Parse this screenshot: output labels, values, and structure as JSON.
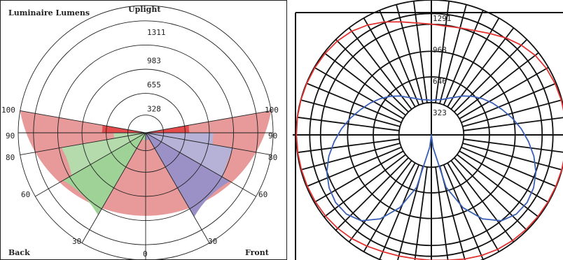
{
  "chart_data": [
    {
      "type": "polar",
      "title": "Luminaire Lumens",
      "labels": {
        "top": "Uplight",
        "bottom_left": "Back",
        "bottom_right": "Front"
      },
      "radial_ticks": [
        "328",
        "655",
        "983",
        "1311"
      ],
      "radial_max": 1311,
      "angle_labels": {
        "left": [
          "100",
          "90",
          "80",
          "60",
          "30"
        ],
        "right": [
          "100",
          "90",
          "80",
          "60",
          "30"
        ],
        "bottom": "0"
      },
      "colors": {
        "uplight": "#e89a9a",
        "uplight_band": "#e64b4b",
        "back_light": "#b6b1d6",
        "back_dark": "#9b91c6",
        "front_light": "#b5dbad",
        "front_dark": "#9ed296"
      },
      "wedges": [
        {
          "name": "uplight-wedge",
          "from": 100,
          "to": 260,
          "value": 1311,
          "color": "#e89a9a"
        },
        {
          "name": "uplight-band-left",
          "from": 90,
          "to": 100,
          "value": 450,
          "color": "#e64b4b"
        },
        {
          "name": "uplight-band-right",
          "from": 260,
          "to": 270,
          "value": 450,
          "color": "#e64b4b"
        },
        {
          "name": "back-80-90",
          "from": 80,
          "to": 90,
          "value": 700,
          "color": "#b6b1d6"
        },
        {
          "name": "back-60-80",
          "from": 60,
          "to": 80,
          "value": 920,
          "color": "#b6b1d6"
        },
        {
          "name": "back-30-60",
          "from": 30,
          "to": 60,
          "value": 1000,
          "color": "#9b91c6"
        },
        {
          "name": "back-0-30",
          "from": 0,
          "to": 30,
          "value": 80,
          "color": "#9b91c6"
        },
        {
          "name": "front-0-30",
          "from": 330,
          "to": 360,
          "value": 80,
          "color": "#9ed296"
        },
        {
          "name": "front-30-60",
          "from": 300,
          "to": 330,
          "value": 980,
          "color": "#9ed296"
        },
        {
          "name": "front-60-80",
          "from": 280,
          "to": 300,
          "value": 880,
          "color": "#b5dbad"
        },
        {
          "name": "front-80-90",
          "from": 270,
          "to": 280,
          "value": 330,
          "color": "#b5dbad"
        }
      ]
    },
    {
      "type": "polar-line",
      "radial_ticks": [
        "323",
        "646",
        "968",
        "1291"
      ],
      "radial_max": 1291,
      "series": [
        {
          "name": "",
          "color": "#e23232",
          "values": [
            1200,
            1210,
            1230,
            1250,
            1265,
            1275,
            1280,
            1283,
            1285,
            1287,
            1289,
            1291,
            1290,
            1288,
            1285,
            1280,
            1270,
            1250,
            1215,
            1170,
            1120,
            1080,
            1060,
            1050,
            1060,
            1080,
            1120,
            1170,
            1215,
            1250,
            1270,
            1280,
            1285,
            1288,
            1290,
            1291,
            1289,
            1287,
            1285,
            1283,
            1280,
            1275,
            1265,
            1250,
            1230,
            1210,
            1200,
            1195,
            1200
          ]
        },
        {
          "name": "",
          "color": "#3b5fb4",
          "values": [
            0,
            120,
            520,
            760,
            940,
            1060,
            1110,
            1120,
            1100,
            1060,
            1000,
            930,
            860,
            790,
            720,
            660,
            600,
            540,
            480,
            420,
            380,
            350,
            340,
            330,
            340,
            350,
            380,
            420,
            480,
            540,
            600,
            660,
            720,
            790,
            860,
            930,
            1000,
            1060,
            1100,
            1120,
            1110,
            1060,
            940,
            760,
            520,
            120,
            0
          ]
        }
      ]
    }
  ]
}
